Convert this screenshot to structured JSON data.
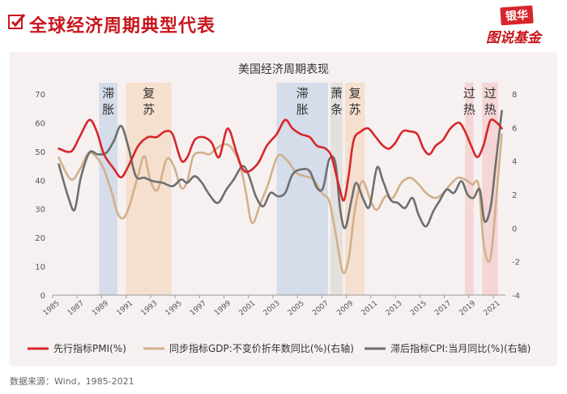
{
  "header": {
    "title": "全球经济周期典型代表",
    "source": "数据来源：Wind，1985-2021"
  },
  "logo": {
    "top": "银华",
    "bottom": "图说基金"
  },
  "colors": {
    "pmi": "#d7262b",
    "gdp": "#d2b08c",
    "cpi": "#6e6e6e",
    "blue_band": "#c9d4e8",
    "orange_band": "#f4d8c4",
    "gray_band": "#dedad8",
    "pink_band": "#f2cccc"
  },
  "chart_data": {
    "type": "line",
    "title": "美国经济周期表现",
    "x_ticks": [
      "1985",
      "1987",
      "1989",
      "1991",
      "1993",
      "1995",
      "1997",
      "1999",
      "2001",
      "2003",
      "2005",
      "2007",
      "2009",
      "2011",
      "2013",
      "2015",
      "2017",
      "2019",
      "2021"
    ],
    "xlim": [
      1985,
      2022
    ],
    "ylim_left": [
      0,
      70
    ],
    "y_ticks_left": [
      "0",
      "10",
      "20",
      "30",
      "40",
      "50",
      "60",
      "70"
    ],
    "ylim_right": [
      -4,
      8
    ],
    "y_ticks_right": [
      "-4",
      "-2",
      "0",
      "2",
      "4",
      "6",
      "8"
    ],
    "phases": [
      {
        "label": "滞胀",
        "from": 1988.8,
        "to": 1990.3,
        "color": "blue"
      },
      {
        "label": "复苏",
        "from": 1991.0,
        "to": 1994.7,
        "color": "orange"
      },
      {
        "label": "滞胀",
        "from": 2003.3,
        "to": 2007.5,
        "color": "blue"
      },
      {
        "label": "萧条",
        "from": 2007.7,
        "to": 2008.7,
        "color": "gray"
      },
      {
        "label": "复苏",
        "from": 2008.9,
        "to": 2010.5,
        "color": "orange"
      },
      {
        "label": "过热",
        "from": 2018.7,
        "to": 2019.4,
        "color": "pink"
      },
      {
        "label": "过热",
        "from": 2020.1,
        "to": 2021.4,
        "color": "pink"
      }
    ],
    "series": [
      {
        "name": "先行指标PMI(%)",
        "axis": "left",
        "points": [
          [
            1985.5,
            51
          ],
          [
            1986.5,
            50
          ],
          [
            1987.2,
            55
          ],
          [
            1988,
            61
          ],
          [
            1988.6,
            57
          ],
          [
            1989.2,
            49
          ],
          [
            1990,
            44
          ],
          [
            1990.6,
            41
          ],
          [
            1991.2,
            45
          ],
          [
            1992,
            52
          ],
          [
            1992.8,
            55
          ],
          [
            1993.5,
            55
          ],
          [
            1994.2,
            57
          ],
          [
            1994.8,
            56
          ],
          [
            1995.5,
            47
          ],
          [
            1996,
            48
          ],
          [
            1996.6,
            54
          ],
          [
            1997.3,
            55
          ],
          [
            1998,
            53
          ],
          [
            1998.6,
            48
          ],
          [
            1999.3,
            58
          ],
          [
            2000,
            50
          ],
          [
            2000.5,
            44
          ],
          [
            2001,
            43
          ],
          [
            2001.8,
            46
          ],
          [
            2002.5,
            52
          ],
          [
            2003.3,
            56
          ],
          [
            2004,
            61
          ],
          [
            2004.6,
            58
          ],
          [
            2005.3,
            56
          ],
          [
            2006,
            55
          ],
          [
            2006.6,
            52
          ],
          [
            2007.3,
            51
          ],
          [
            2007.8,
            48
          ],
          [
            2008.4,
            38
          ],
          [
            2008.8,
            33
          ],
          [
            2009.2,
            42
          ],
          [
            2009.6,
            54
          ],
          [
            2010.2,
            57
          ],
          [
            2010.8,
            58
          ],
          [
            2011.4,
            55
          ],
          [
            2012,
            52
          ],
          [
            2012.5,
            51
          ],
          [
            2013,
            53
          ],
          [
            2013.6,
            57
          ],
          [
            2014.2,
            57
          ],
          [
            2014.8,
            56
          ],
          [
            2015.3,
            51
          ],
          [
            2015.8,
            49
          ],
          [
            2016.3,
            52
          ],
          [
            2016.9,
            54
          ],
          [
            2017.5,
            58
          ],
          [
            2018.2,
            60
          ],
          [
            2018.7,
            57
          ],
          [
            2019.2,
            52
          ],
          [
            2019.7,
            48
          ],
          [
            2020.2,
            52
          ],
          [
            2020.5,
            57
          ],
          [
            2020.8,
            61
          ],
          [
            2021.3,
            60
          ],
          [
            2021.7,
            58
          ]
        ]
      },
      {
        "name": "同步指标GDP:不变价折年数同比(%)(右轴)",
        "axis": "right",
        "points": [
          [
            1985.5,
            4.2
          ],
          [
            1986.5,
            2.9
          ],
          [
            1987.3,
            3.6
          ],
          [
            1988,
            4.5
          ],
          [
            1989,
            3.8
          ],
          [
            1989.8,
            2.2
          ],
          [
            1990.3,
            0.9
          ],
          [
            1990.8,
            0.6
          ],
          [
            1991.3,
            1.4
          ],
          [
            1992,
            3.2
          ],
          [
            1992.5,
            4.3
          ],
          [
            1993,
            2.8
          ],
          [
            1993.6,
            2.3
          ],
          [
            1994.3,
            4.1
          ],
          [
            1994.9,
            3.7
          ],
          [
            1995.5,
            2.4
          ],
          [
            1996,
            2.8
          ],
          [
            1996.5,
            4.3
          ],
          [
            1997.2,
            4.5
          ],
          [
            1997.8,
            4.4
          ],
          [
            1998.3,
            4.7
          ],
          [
            1999,
            5.0
          ],
          [
            1999.6,
            4.8
          ],
          [
            2000.3,
            3.8
          ],
          [
            2000.8,
            2.1
          ],
          [
            2001.3,
            0.3
          ],
          [
            2002,
            1.5
          ],
          [
            2002.6,
            2.6
          ],
          [
            2003.4,
            4.3
          ],
          [
            2004.2,
            4.0
          ],
          [
            2004.9,
            3.3
          ],
          [
            2005.6,
            3.1
          ],
          [
            2006.3,
            2.9
          ],
          [
            2007,
            2.1
          ],
          [
            2007.6,
            1.6
          ],
          [
            2008.1,
            -0.2
          ],
          [
            2008.7,
            -2.6
          ],
          [
            2009.2,
            -1.8
          ],
          [
            2009.7,
            1.1
          ],
          [
            2010.3,
            2.8
          ],
          [
            2011,
            1.6
          ],
          [
            2011.5,
            1.1
          ],
          [
            2012.2,
            1.9
          ],
          [
            2012.8,
            1.8
          ],
          [
            2013.5,
            2.7
          ],
          [
            2014.2,
            3.0
          ],
          [
            2014.8,
            2.7
          ],
          [
            2015.5,
            2.1
          ],
          [
            2016.2,
            1.8
          ],
          [
            2016.8,
            2.0
          ],
          [
            2017.5,
            2.6
          ],
          [
            2018.1,
            3.0
          ],
          [
            2018.7,
            2.9
          ],
          [
            2019.3,
            2.6
          ],
          [
            2019.8,
            2.6
          ],
          [
            2020.2,
            -0.8
          ],
          [
            2020.6,
            -2.0
          ],
          [
            2020.9,
            -1.2
          ],
          [
            2021.3,
            2.2
          ],
          [
            2021.7,
            5.6
          ]
        ]
      },
      {
        "name": "滞后指标CPI:当月同比(%)(右轴)",
        "axis": "right",
        "points": [
          [
            1985.5,
            3.8
          ],
          [
            1986.3,
            1.8
          ],
          [
            1986.8,
            1.1
          ],
          [
            1987.3,
            3.0
          ],
          [
            1988,
            4.5
          ],
          [
            1988.7,
            4.4
          ],
          [
            1989.4,
            4.5
          ],
          [
            1990,
            5.2
          ],
          [
            1990.6,
            6.1
          ],
          [
            1991.2,
            4.8
          ],
          [
            1991.8,
            3.1
          ],
          [
            1992.5,
            3.0
          ],
          [
            1993.2,
            2.8
          ],
          [
            1994,
            2.7
          ],
          [
            1994.8,
            2.5
          ],
          [
            1995.5,
            2.9
          ],
          [
            1996,
            2.7
          ],
          [
            1996.6,
            3.1
          ],
          [
            1997.2,
            2.7
          ],
          [
            1997.8,
            2.0
          ],
          [
            1998.5,
            1.5
          ],
          [
            1999.2,
            2.3
          ],
          [
            1999.8,
            2.9
          ],
          [
            2000.5,
            3.7
          ],
          [
            2001,
            3.2
          ],
          [
            2001.6,
            1.9
          ],
          [
            2002.2,
            1.3
          ],
          [
            2002.8,
            2.1
          ],
          [
            2003.4,
            1.9
          ],
          [
            2004,
            2.1
          ],
          [
            2004.6,
            3.2
          ],
          [
            2005.3,
            3.5
          ],
          [
            2006,
            3.4
          ],
          [
            2006.6,
            2.4
          ],
          [
            2007.1,
            2.4
          ],
          [
            2007.6,
            4.1
          ],
          [
            2008.1,
            3.9
          ],
          [
            2008.5,
            1.1
          ],
          [
            2008.9,
            0.0
          ],
          [
            2009.4,
            1.6
          ],
          [
            2009.8,
            2.7
          ],
          [
            2010.4,
            1.7
          ],
          [
            2010.9,
            1.3
          ],
          [
            2011.5,
            3.6
          ],
          [
            2012,
            2.8
          ],
          [
            2012.6,
            1.7
          ],
          [
            2013.2,
            1.5
          ],
          [
            2013.8,
            1.2
          ],
          [
            2014.4,
            1.8
          ],
          [
            2014.9,
            0.8
          ],
          [
            2015.5,
            0.1
          ],
          [
            2016.1,
            1.0
          ],
          [
            2016.6,
            1.6
          ],
          [
            2017.2,
            2.3
          ],
          [
            2017.8,
            2.1
          ],
          [
            2018.4,
            2.8
          ],
          [
            2018.9,
            2.0
          ],
          [
            2019.4,
            1.8
          ],
          [
            2019.9,
            2.3
          ],
          [
            2020.3,
            0.4
          ],
          [
            2020.8,
            1.3
          ],
          [
            2021.2,
            3.8
          ],
          [
            2021.7,
            7.0
          ]
        ]
      }
    ],
    "legend_position": "bottom"
  }
}
